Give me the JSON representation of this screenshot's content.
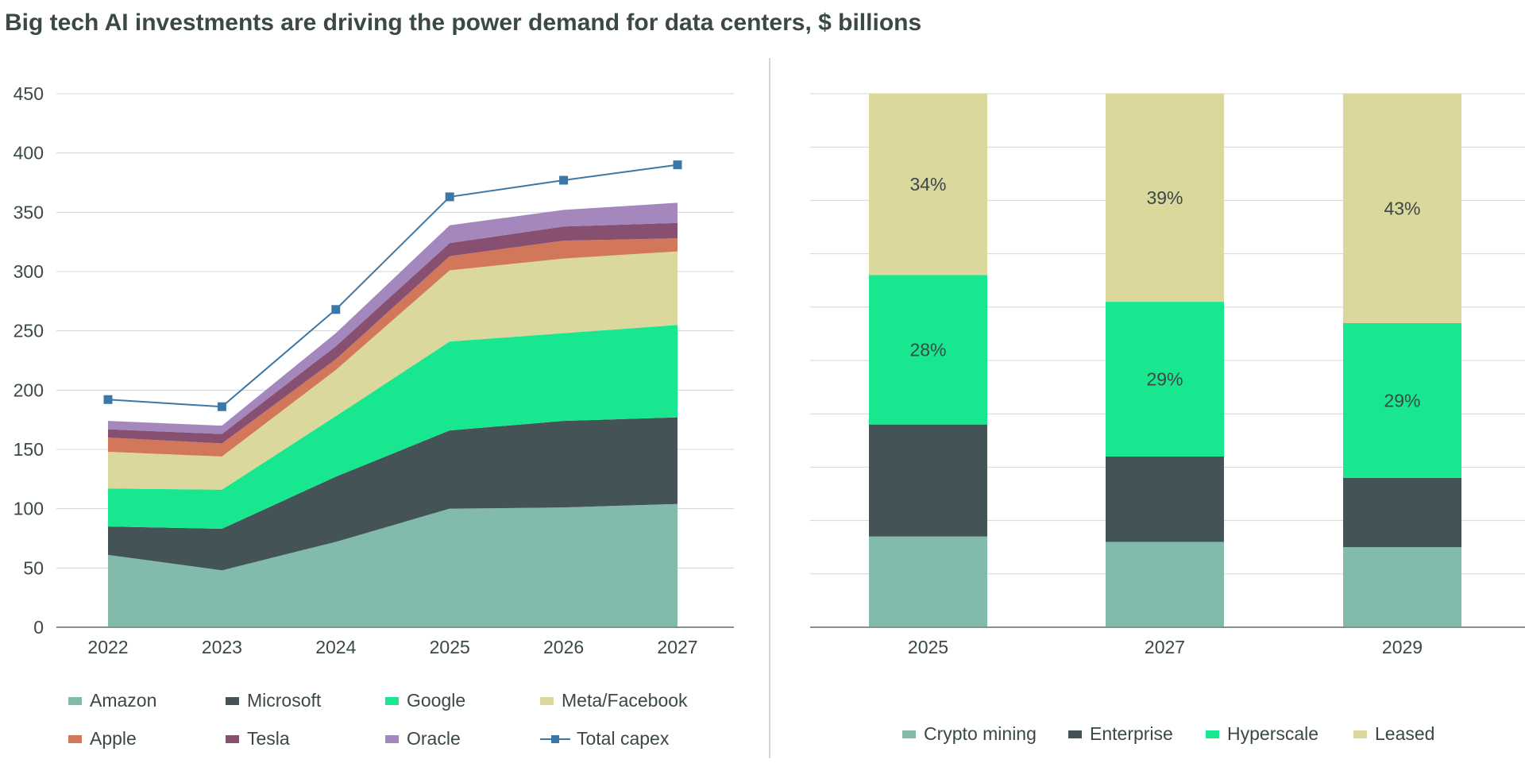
{
  "title": "Big tech AI investments are driving the power demand for data centers, $ billions",
  "chart_data": [
    {
      "type": "area",
      "stacked": true,
      "categories": [
        "2022",
        "2023",
        "2024",
        "2025",
        "2026",
        "2027"
      ],
      "ylim": [
        0,
        450
      ],
      "yticks": [
        "0",
        "50",
        "100",
        "150",
        "200",
        "250",
        "300",
        "350",
        "400",
        "450"
      ],
      "grid": true,
      "legend_position": "bottom",
      "series": [
        {
          "name": "Amazon",
          "color": "#82bbab",
          "values": [
            61,
            48,
            72,
            100,
            101,
            104
          ]
        },
        {
          "name": "Microsoft",
          "color": "#445356",
          "values": [
            24,
            35,
            55,
            66,
            73,
            73
          ]
        },
        {
          "name": "Google",
          "color": "#18e78f",
          "values": [
            32,
            33,
            51,
            75,
            74,
            78
          ]
        },
        {
          "name": "Meta/Facebook",
          "color": "#dad89c",
          "values": [
            31,
            28,
            39,
            60,
            63,
            62
          ]
        },
        {
          "name": "Apple",
          "color": "#d2775a",
          "values": [
            12,
            11,
            9,
            12,
            15,
            11
          ]
        },
        {
          "name": "Tesla",
          "color": "#875071",
          "values": [
            7,
            8,
            11,
            11,
            12,
            13
          ]
        },
        {
          "name": "Oracle",
          "color": "#a387bd",
          "values": [
            7,
            7,
            11,
            15,
            14,
            17
          ]
        }
      ],
      "line_series": {
        "name": "Total capex",
        "color": "#3b78a8",
        "values": [
          192,
          186,
          268,
          363,
          377,
          390
        ]
      }
    },
    {
      "type": "bar",
      "stacked": true,
      "percent": true,
      "categories": [
        "2025",
        "2027",
        "2029"
      ],
      "ylim": [
        0,
        100
      ],
      "grid": true,
      "legend_position": "bottom",
      "series": [
        {
          "name": "Crypto mining",
          "color": "#82bbab",
          "values": [
            17,
            16,
            15
          ]
        },
        {
          "name": "Enterprise",
          "color": "#445356",
          "values": [
            21,
            16,
            13
          ]
        },
        {
          "name": "Hyperscale",
          "color": "#18e78f",
          "values": [
            28,
            29,
            29
          ],
          "labels": [
            "28%",
            "29%",
            "29%"
          ]
        },
        {
          "name": "Leased",
          "color": "#dad89c",
          "values": [
            34,
            39,
            43
          ],
          "labels": [
            "34%",
            "39%",
            "43%"
          ]
        }
      ]
    }
  ]
}
